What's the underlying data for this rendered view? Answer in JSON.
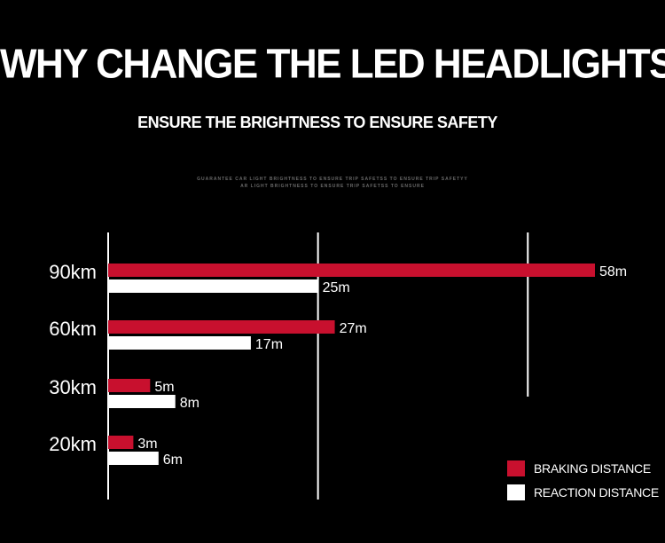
{
  "header": {
    "title": "WHY CHANGE THE LED HEADLIGHTS?",
    "subtitle": "ENSURE THE BRIGHTNESS TO ENSURE SAFETY",
    "tagline_line1": "GUARANTEE CAR LIGHT BRIGHTNESS TO ENSURE TRIP SAFETSS TO ENSURE TRIP SAFETYY",
    "tagline_line2": "AR LIGHT BRIGHTNESS TO ENSURE TRIP SAFETSS TO ENSURE"
  },
  "colors": {
    "braking": "#c8102e",
    "reaction": "#ffffff",
    "background": "#000000",
    "text": "#ffffff"
  },
  "chart_data": {
    "type": "bar",
    "orientation": "horizontal",
    "categories": [
      "90km",
      "60km",
      "30km",
      "20km"
    ],
    "series": [
      {
        "name": "BRAKING DISTANCE",
        "values": [
          58,
          27,
          5,
          3
        ],
        "labels": [
          "58m",
          "27m",
          "5m",
          "3m"
        ]
      },
      {
        "name": "REACTION DISTANCE",
        "values": [
          25,
          17,
          8,
          6
        ],
        "labels": [
          "25m",
          "17m",
          "8m",
          "6m"
        ]
      }
    ],
    "xlim": [
      0,
      58
    ],
    "gridlines": [
      25,
      50
    ],
    "legend_position": "bottom-right"
  }
}
